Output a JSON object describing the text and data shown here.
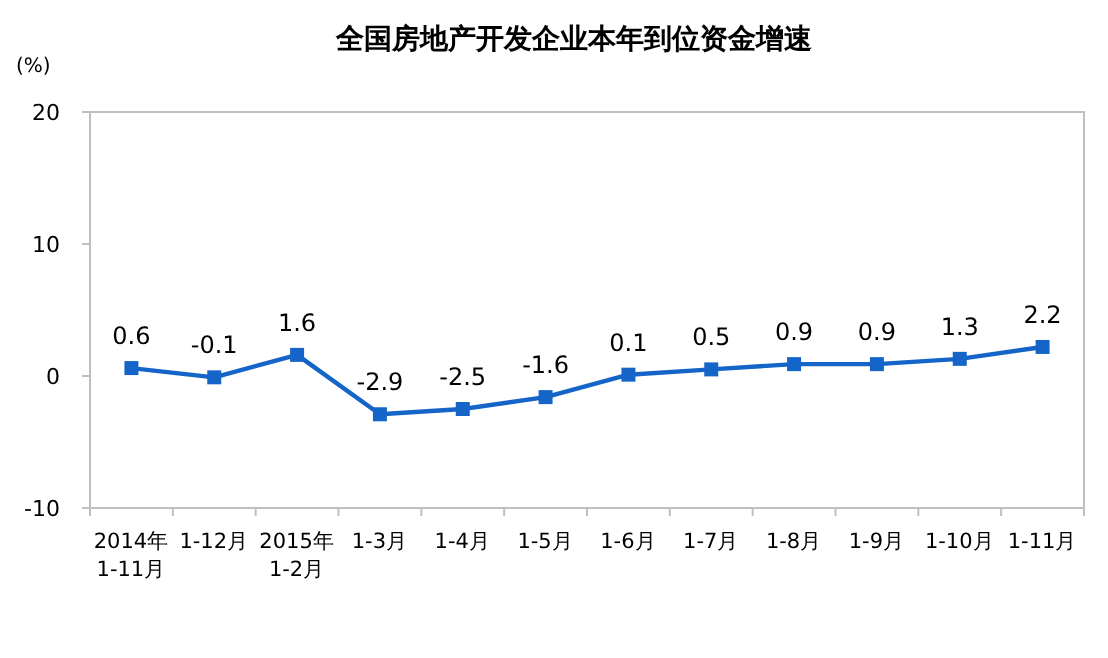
{
  "chart_data": {
    "type": "line",
    "title": "全国房地产开发企业本年到位资金增速",
    "ylabel": "(%)",
    "categories": [
      "2014年\n1-11月",
      "1-12月",
      "2015年\n1-2月",
      "1-3月",
      "1-4月",
      "1-5月",
      "1-6月",
      "1-7月",
      "1-8月",
      "1-9月",
      "1-10月",
      "1-11月"
    ],
    "values": [
      0.6,
      -0.1,
      1.6,
      -2.9,
      -2.5,
      -1.6,
      0.1,
      0.5,
      0.9,
      0.9,
      1.3,
      2.2
    ],
    "color": "#1565c8",
    "marker": "square",
    "data_labels": true,
    "ylim": [
      -10,
      20
    ],
    "yticks": [
      -10,
      0,
      10,
      20
    ],
    "grid": false
  }
}
